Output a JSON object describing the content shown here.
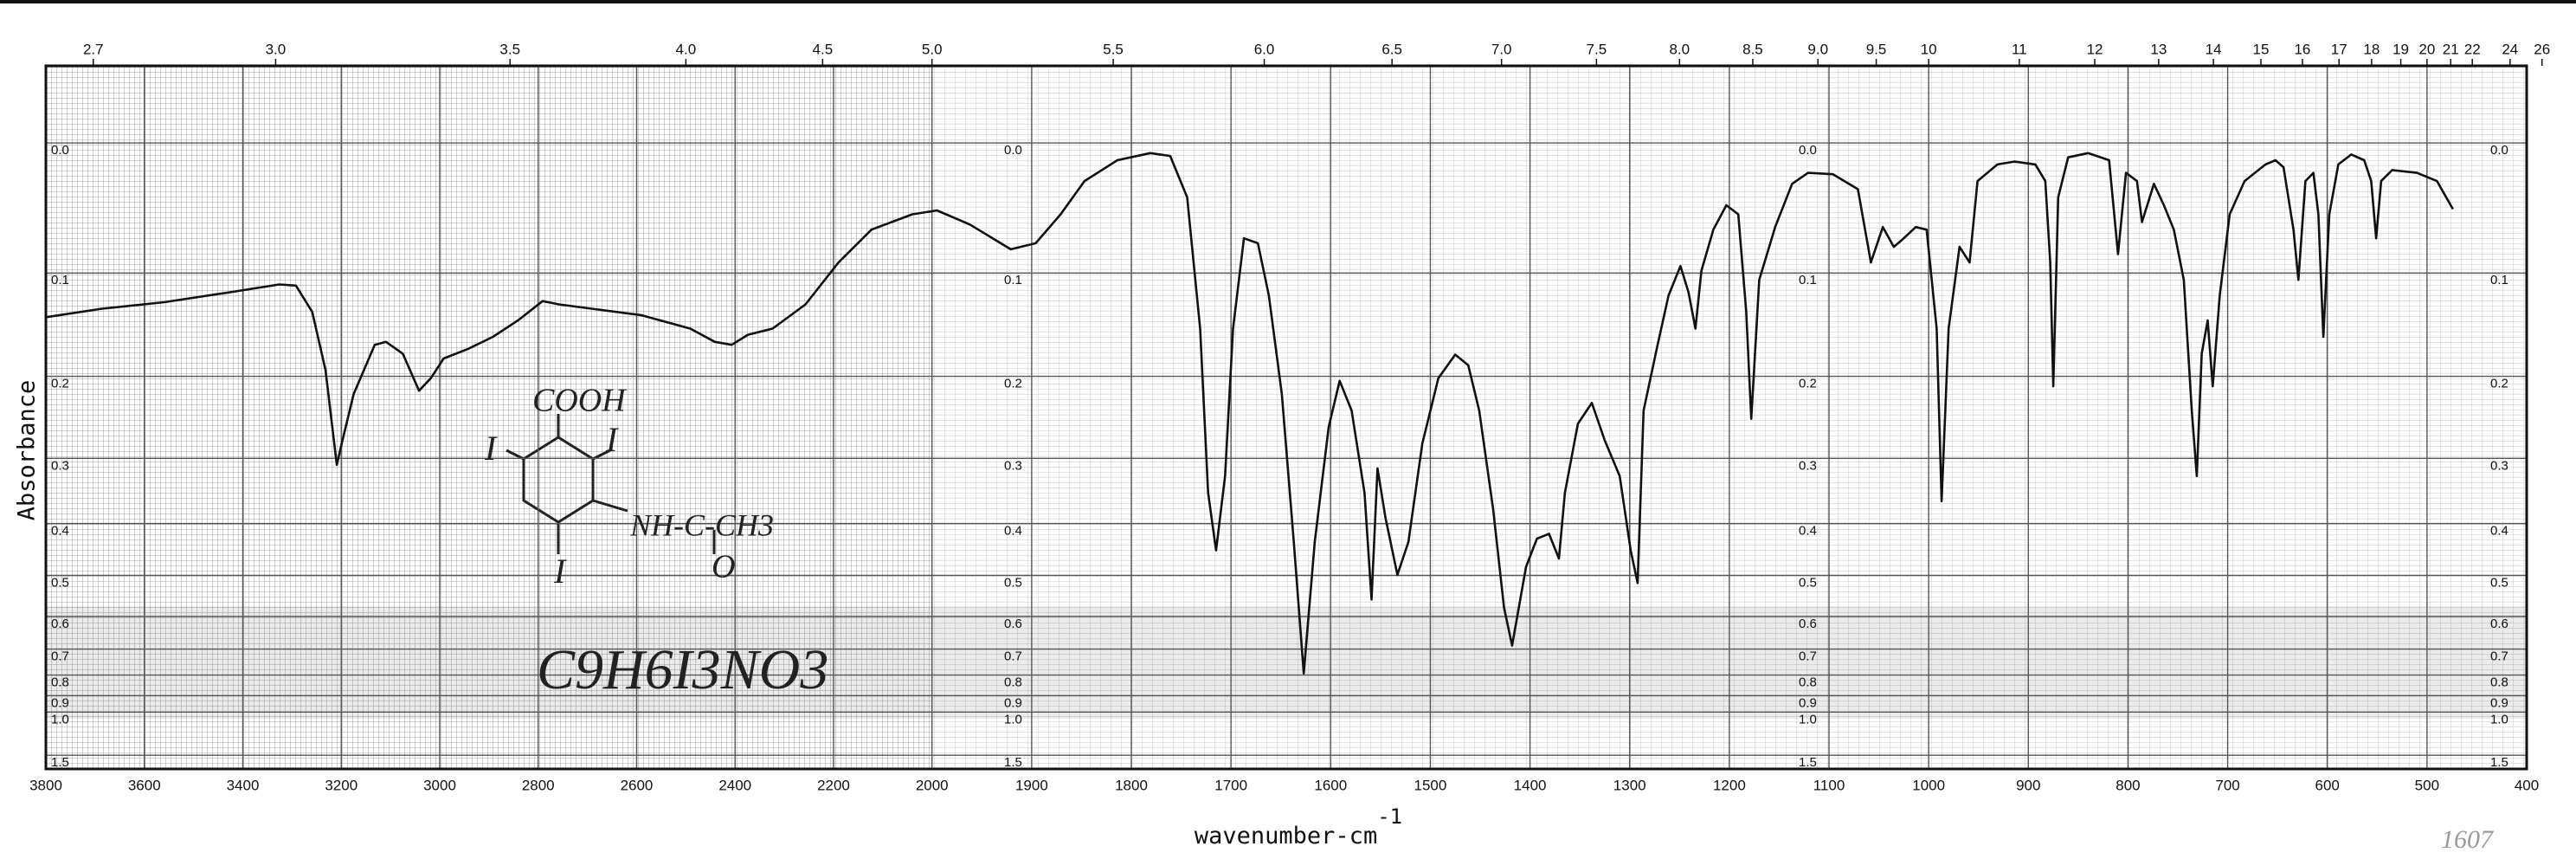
{
  "chart_data": {
    "type": "line",
    "ylabel": "Absorbance",
    "xlabel": "wavenumber-cm",
    "xlabel_exponent": "-1",
    "xlim": [
      3800,
      400
    ],
    "xscale_break": 2000,
    "xticks": [
      3800,
      3600,
      3400,
      3200,
      3000,
      2800,
      2600,
      2400,
      2200,
      2000,
      1900,
      1800,
      1700,
      1600,
      1500,
      1400,
      1300,
      1200,
      1100,
      1000,
      900,
      800,
      700,
      600,
      500,
      400
    ],
    "x2ticks": [
      2.7,
      {
        "value": 3,
        "label": "3.0"
      },
      3.5,
      {
        "value": 4,
        "label": "4.0"
      },
      4.5,
      {
        "value": 5,
        "label": "5.0"
      },
      5.5,
      {
        "value": 6,
        "label": "6.0"
      },
      6.5,
      {
        "value": 7,
        "label": "7.0"
      },
      7.5,
      {
        "value": 8,
        "label": "8.0"
      },
      8.5,
      {
        "value": 9,
        "label": "9.0"
      },
      9.5,
      10,
      11,
      12,
      13,
      14,
      15,
      16,
      17,
      18,
      19,
      20,
      21,
      22,
      24,
      26
    ],
    "ylim": [
      -0.05,
      2
    ],
    "yscale": "transmittance",
    "yticks": [
      {
        "value": 0,
        "label": "0.0"
      },
      0.1,
      0.2,
      0.3,
      0.4,
      0.5,
      0.6,
      0.7,
      0.8,
      0.9,
      {
        "value": 1,
        "label": "1.0"
      },
      1.5
    ],
    "grid": true,
    "color": "#111111",
    "x": [
      3800,
      3686,
      3560,
      3426,
      3326,
      3292,
      3259,
      3232,
      3209,
      3199,
      3175,
      3132,
      3109,
      3075,
      3042,
      3018,
      2992,
      2942,
      2892,
      2841,
      2791,
      2758,
      2691,
      2591,
      2491,
      2441,
      2407,
      2374,
      2324,
      2257,
      2190,
      2123,
      2040,
      1995,
      1962,
      1921,
      1896,
      1871,
      1847,
      1814,
      1781,
      1761,
      1744,
      1731,
      1723,
      1715,
      1706,
      1698,
      1687,
      1673,
      1662,
      1649,
      1637,
      1627,
      1616,
      1602,
      1591,
      1579,
      1566,
      1559,
      1553,
      1545,
      1533,
      1522,
      1508,
      1492,
      1475,
      1462,
      1451,
      1437,
      1426,
      1418,
      1404,
      1393,
      1381,
      1371,
      1365,
      1352,
      1338,
      1325,
      1310,
      1299,
      1292,
      1286,
      1272,
      1261,
      1249,
      1241,
      1234,
      1228,
      1216,
      1203,
      1191,
      1183,
      1178,
      1170,
      1154,
      1137,
      1121,
      1096,
      1071,
      1058,
      1046,
      1035,
      1025,
      1013,
      1002,
      992,
      987,
      980,
      969,
      959,
      951,
      931,
      914,
      893,
      883,
      878,
      875,
      870,
      860,
      840,
      819,
      810,
      802,
      791,
      786,
      774,
      764,
      754,
      744,
      736,
      731,
      726,
      720,
      715,
      708,
      698,
      683,
      662,
      652,
      644,
      634,
      629,
      622,
      614,
      609,
      604,
      598,
      589,
      576,
      563,
      556,
      551,
      546,
      535,
      510,
      490,
      474
    ],
    "values": [
      0.14,
      0.132,
      0.126,
      0.117,
      0.11,
      0.111,
      0.135,
      0.193,
      0.309,
      0.28,
      0.22,
      0.167,
      0.164,
      0.176,
      0.216,
      0.202,
      0.181,
      0.171,
      0.159,
      0.143,
      0.125,
      0.128,
      0.132,
      0.138,
      0.151,
      0.164,
      0.167,
      0.157,
      0.151,
      0.128,
      0.091,
      0.064,
      0.052,
      0.049,
      0.06,
      0.08,
      0.075,
      0.052,
      0.027,
      0.012,
      0.007,
      0.009,
      0.039,
      0.151,
      0.35,
      0.449,
      0.325,
      0.151,
      0.071,
      0.075,
      0.12,
      0.22,
      0.433,
      0.793,
      0.433,
      0.259,
      0.205,
      0.239,
      0.35,
      0.556,
      0.314,
      0.39,
      0.499,
      0.433,
      0.28,
      0.202,
      0.177,
      0.188,
      0.239,
      0.376,
      0.577,
      0.688,
      0.482,
      0.427,
      0.418,
      0.465,
      0.35,
      0.255,
      0.23,
      0.276,
      0.325,
      0.449,
      0.517,
      0.239,
      0.167,
      0.12,
      0.094,
      0.117,
      0.151,
      0.098,
      0.064,
      0.045,
      0.052,
      0.135,
      0.249,
      0.106,
      0.062,
      0.029,
      0.021,
      0.022,
      0.033,
      0.091,
      0.062,
      0.078,
      0.071,
      0.062,
      0.064,
      0.151,
      0.363,
      0.151,
      0.078,
      0.091,
      0.027,
      0.015,
      0.013,
      0.015,
      0.027,
      0.091,
      0.211,
      0.039,
      0.01,
      0.007,
      0.012,
      0.084,
      0.021,
      0.027,
      0.058,
      0.029,
      0.045,
      0.064,
      0.106,
      0.239,
      0.325,
      0.176,
      0.143,
      0.211,
      0.12,
      0.052,
      0.027,
      0.015,
      0.012,
      0.017,
      0.064,
      0.106,
      0.027,
      0.021,
      0.052,
      0.159,
      0.052,
      0.015,
      0.008,
      0.012,
      0.027,
      0.071,
      0.027,
      0.019,
      0.021,
      0.027,
      0.048
    ],
    "annotations": [
      "COOH",
      "I",
      "I",
      "NH-C-CH3",
      "I",
      "O",
      "C9H6I3NO3",
      "1607"
    ]
  }
}
